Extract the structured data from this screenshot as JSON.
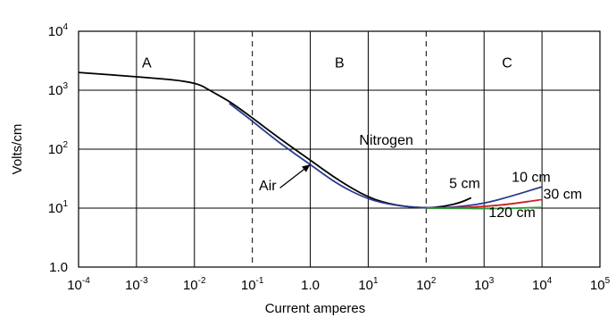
{
  "chart_data": {
    "type": "line",
    "title": "",
    "xlabel": "Current amperes",
    "ylabel": "Volts/cm",
    "x_scale": "log",
    "y_scale": "log",
    "xlim": [
      0.0001,
      100000
    ],
    "ylim": [
      1,
      10000
    ],
    "grid": true,
    "x_ticks": [
      {
        "value": 0.0001,
        "base": "10",
        "exp": "-4"
      },
      {
        "value": 0.001,
        "base": "10",
        "exp": "-3"
      },
      {
        "value": 0.01,
        "base": "10",
        "exp": "-2"
      },
      {
        "value": 0.1,
        "base": "10",
        "exp": "-1"
      },
      {
        "value": 1,
        "base": "1.0",
        "exp": ""
      },
      {
        "value": 10,
        "base": "10",
        "exp": "1"
      },
      {
        "value": 100,
        "base": "10",
        "exp": "2"
      },
      {
        "value": 1000,
        "base": "10",
        "exp": "3"
      },
      {
        "value": 10000,
        "base": "10",
        "exp": "4"
      },
      {
        "value": 100000,
        "base": "10",
        "exp": "5"
      }
    ],
    "y_ticks": [
      {
        "value": 1,
        "base": "1.0",
        "exp": ""
      },
      {
        "value": 10,
        "base": "10",
        "exp": "1"
      },
      {
        "value": 100,
        "base": "10",
        "exp": "2"
      },
      {
        "value": 1000,
        "base": "10",
        "exp": "3"
      },
      {
        "value": 10000,
        "base": "10",
        "exp": "4"
      }
    ],
    "region_dividers": [
      0.1,
      100
    ],
    "regions": [
      {
        "label": "A",
        "x": 0.0015,
        "y": 3000
      },
      {
        "label": "B",
        "x": 3.2,
        "y": 3000
      },
      {
        "label": "C",
        "x": 2500,
        "y": 3000
      }
    ],
    "series": [
      {
        "name": "Nitrogen",
        "color": "#000000",
        "x": [
          0.0001,
          0.001,
          0.01,
          0.02,
          0.04,
          0.1,
          0.3,
          1,
          3,
          10,
          30,
          100,
          200,
          400,
          600
        ],
        "y": [
          2000,
          1700,
          1400,
          950,
          650,
          340,
          150,
          65,
          30,
          15,
          11,
          10,
          10.6,
          12.5,
          15
        ]
      },
      {
        "name": "Air",
        "color": "#2a3b8f",
        "x": [
          0.04,
          0.1,
          0.3,
          1,
          3,
          10,
          30,
          100,
          300,
          1000,
          3000,
          10000
        ],
        "y": [
          600,
          300,
          125,
          55,
          25,
          14,
          11,
          10,
          10.3,
          12,
          16,
          23
        ]
      },
      {
        "name": "30 cm",
        "color": "#cc2222",
        "x": [
          100,
          300,
          1000,
          3000,
          10000
        ],
        "y": [
          10,
          10.1,
          10.6,
          11.8,
          14
        ]
      },
      {
        "name": "120 cm",
        "color": "#2f9a3a",
        "x": [
          100,
          300,
          1000,
          3000,
          10000
        ],
        "y": [
          10,
          9.9,
          9.8,
          9.9,
          10.3
        ]
      }
    ],
    "annotations": [
      {
        "text": "Nitrogen",
        "x": 7,
        "y": 120,
        "color": "#000000"
      },
      {
        "text": "Air",
        "x": 0.13,
        "y": 20,
        "color": "#000000"
      },
      {
        "text": "5 cm",
        "x": 250,
        "y": 22,
        "color": "#000000"
      },
      {
        "text": "10 cm",
        "x": 3000,
        "y": 28,
        "color": "#2a3b8f"
      },
      {
        "text": "30 cm",
        "x": 10500,
        "y": 14.5,
        "color": "#cc2222"
      },
      {
        "text": "120 cm",
        "x": 1200,
        "y": 7,
        "color": "#2f9a3a"
      }
    ],
    "arrow": {
      "from": [
        0.3,
        22
      ],
      "to": [
        1,
        55
      ]
    }
  }
}
